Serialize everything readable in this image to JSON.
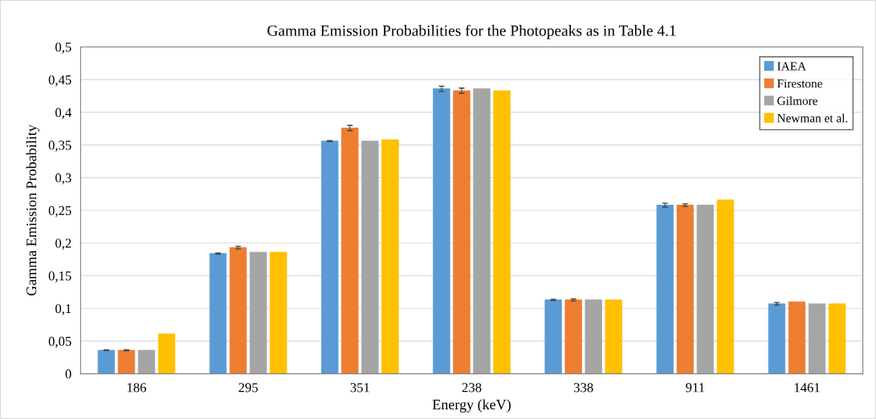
{
  "chart_data": {
    "type": "bar",
    "title": "Gamma Emission Probabilities for the Photopeaks as in Table 4.1",
    "xlabel": "Energy (keV)",
    "ylabel": "Gamma Emission Probability",
    "categories": [
      "186",
      "295",
      "351",
      "238",
      "338",
      "911",
      "1461"
    ],
    "series": [
      {
        "name": "IAEA",
        "color": "#5b9bd5",
        "values": [
          0.036,
          0.184,
          0.356,
          0.436,
          0.113,
          0.258,
          0.107
        ],
        "errors": [
          0.0004,
          0.0008,
          0.0007,
          0.004,
          0.0009,
          0.003,
          0.002
        ]
      },
      {
        "name": "Firestone",
        "color": "#ed7d31",
        "values": [
          0.036,
          0.193,
          0.376,
          0.433,
          0.113,
          0.258,
          0.11
        ],
        "errors": [
          0.0005,
          0.002,
          0.004,
          0.004,
          0.0015,
          0.002,
          null
        ]
      },
      {
        "name": "Gilmore",
        "color": "#a5a5a5",
        "values": [
          0.036,
          0.186,
          0.356,
          0.436,
          0.113,
          0.258,
          0.107
        ]
      },
      {
        "name": "Newman et al.",
        "color": "#ffc000",
        "values": [
          0.061,
          0.186,
          0.358,
          0.433,
          0.113,
          0.266,
          0.107
        ]
      }
    ],
    "ylim": [
      0,
      0.5
    ],
    "yticks": [
      0,
      {
        "value": 0.05,
        "label": "0,05"
      },
      {
        "value": 0.1,
        "label": "0,1"
      },
      {
        "value": 0.15,
        "label": "0,15"
      },
      {
        "value": 0.2,
        "label": "0,2"
      },
      {
        "value": 0.25,
        "label": "0,25"
      },
      {
        "value": 0.3,
        "label": "0,3"
      },
      {
        "value": 0.35,
        "label": "0,35"
      },
      {
        "value": 0.4,
        "label": "0,4"
      },
      {
        "value": 0.45,
        "label": "0,45"
      },
      {
        "value": 0.5,
        "label": "0,5"
      }
    ],
    "grid": "y",
    "legend": "top right"
  }
}
